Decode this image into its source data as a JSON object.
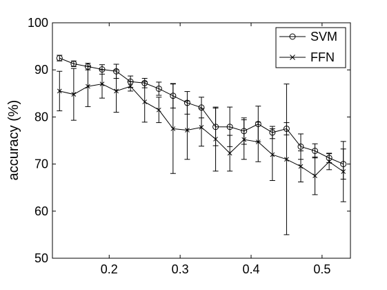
{
  "chart_data": {
    "type": "line",
    "xlabel": "",
    "ylabel": "accuracy (%)",
    "xlim": [
      0.12,
      0.54
    ],
    "ylim": [
      50,
      100
    ],
    "xticks": [
      0.2,
      0.3,
      0.4,
      0.5
    ],
    "xtick_labels": [
      "0.2",
      "0.3",
      "0.4",
      "0.5"
    ],
    "yticks": [
      50,
      60,
      70,
      80,
      90,
      100
    ],
    "ytick_labels": [
      "50",
      "60",
      "70",
      "80",
      "90",
      "100"
    ],
    "grid": false,
    "legend_position": "top-right",
    "x": [
      0.13,
      0.15,
      0.17,
      0.19,
      0.21,
      0.23,
      0.25,
      0.27,
      0.29,
      0.31,
      0.33,
      0.35,
      0.37,
      0.39,
      0.41,
      0.43,
      0.45,
      0.47,
      0.49,
      0.51,
      0.53
    ],
    "series": [
      {
        "name": "SVM",
        "marker": "circle",
        "color": "#000000",
        "values": [
          92.5,
          91.3,
          90.7,
          90.1,
          89.7,
          87.5,
          87.2,
          86.0,
          84.5,
          83.0,
          82.0,
          77.9,
          77.9,
          77.0,
          78.5,
          76.7,
          77.5,
          73.7,
          72.8,
          71.3,
          70.0
        ],
        "err": [
          0.6,
          0.6,
          0.7,
          1.0,
          1.5,
          1.2,
          1.0,
          1.4,
          2.6,
          2.4,
          2.2,
          4.0,
          4.2,
          2.8,
          3.8,
          1.3,
          1.3,
          2.7,
          1.5,
          1.0,
          3.2
        ]
      },
      {
        "name": "FFN",
        "marker": "x",
        "color": "#000000",
        "values": [
          85.5,
          84.8,
          86.5,
          87.0,
          85.5,
          86.5,
          83.2,
          81.5,
          77.5,
          77.2,
          77.8,
          75.3,
          72.3,
          75.2,
          74.7,
          72.0,
          71.0,
          69.5,
          67.5,
          70.5,
          68.4
        ],
        "err": [
          4.2,
          5.5,
          4.3,
          3.0,
          4.5,
          1.0,
          4.3,
          2.7,
          9.5,
          6.2,
          4.0,
          6.8,
          3.8,
          4.2,
          4.2,
          5.5,
          16.0,
          3.3,
          4.0,
          1.7,
          6.4
        ]
      }
    ]
  }
}
